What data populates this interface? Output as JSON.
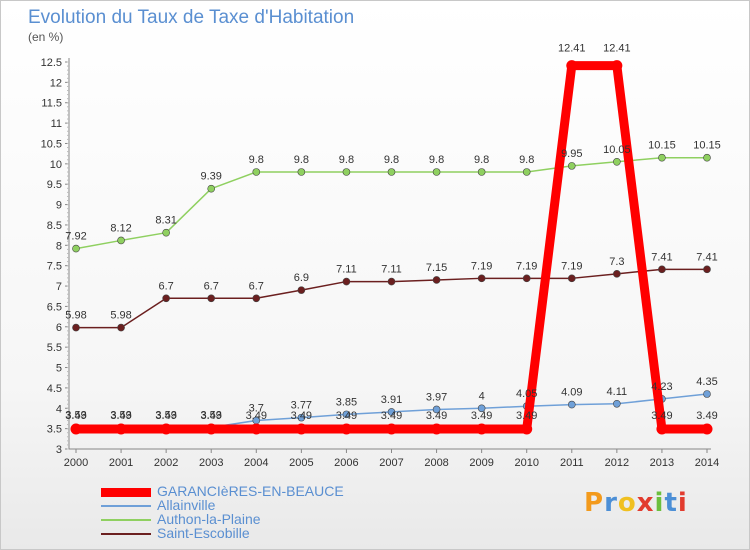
{
  "title": "Evolution du Taux de Taxe d'Habitation",
  "unit": "(en %)",
  "logo": "Proxiti",
  "chart_data": {
    "type": "line",
    "title": "Evolution du Taux de Taxe d'Habitation",
    "ylabel": "(en %)",
    "x": [
      "2000",
      "2001",
      "2002",
      "2003",
      "2004",
      "2005",
      "2006",
      "2007",
      "2008",
      "2009",
      "2010",
      "2011",
      "2012",
      "2013",
      "2014"
    ],
    "ylim": [
      3,
      12.5
    ],
    "yticks": [
      "3",
      "3.5",
      "4",
      "4.5",
      "5",
      "5.5",
      "6",
      "6.5",
      "7",
      "7.5",
      "8",
      "8.5",
      "9",
      "9.5",
      "10",
      "10.5",
      "11",
      "11.5",
      "12",
      "12.5"
    ],
    "grid": false,
    "legend_position": "bottom-left",
    "series": [
      {
        "name": "GARANCIèRES-EN-BEAUCE",
        "color": "#ff0000",
        "width": 9,
        "marker": false,
        "values": [
          3.49,
          3.49,
          3.49,
          3.49,
          3.49,
          3.49,
          3.49,
          3.49,
          3.49,
          3.49,
          3.49,
          12.41,
          12.41,
          3.49,
          3.49
        ],
        "labels": [
          "3.49",
          "3.49",
          "3.49",
          "3.49",
          "3.49",
          "3.49",
          "3.49",
          "3.49",
          "3.49",
          "3.49",
          "3.49",
          "12.41",
          "12.41",
          "3.49",
          "3.49"
        ]
      },
      {
        "name": "Allainville",
        "color": "#6fa0d8",
        "width": 1.5,
        "marker": true,
        "values": [
          3.53,
          3.53,
          3.53,
          3.53,
          3.7,
          3.77,
          3.85,
          3.91,
          3.97,
          4,
          4.05,
          4.09,
          4.11,
          4.23,
          4.35
        ],
        "labels": [
          "3.53",
          "3.53",
          "3.53",
          "3.53",
          "3.7",
          "3.77",
          "3.85",
          "3.91",
          "3.97",
          "4",
          "4.05",
          "4.09",
          "4.11",
          "4.23",
          "4.35"
        ]
      },
      {
        "name": "Authon-la-Plaine",
        "color": "#8fd060",
        "width": 1.5,
        "marker": true,
        "values": [
          7.92,
          8.12,
          8.31,
          9.39,
          9.8,
          9.8,
          9.8,
          9.8,
          9.8,
          9.8,
          9.8,
          9.95,
          10.05,
          10.15,
          10.15
        ],
        "labels": [
          "7.92",
          "8.12",
          "8.31",
          "9.39",
          "9.8",
          "9.8",
          "9.8",
          "9.8",
          "9.8",
          "9.8",
          "9.8",
          "9.95",
          "10.05",
          "10.15",
          "10.15"
        ]
      },
      {
        "name": "Saint-Escobille",
        "color": "#6b1f1f",
        "width": 1.5,
        "marker": true,
        "values": [
          5.98,
          5.98,
          6.7,
          6.7,
          6.7,
          6.9,
          7.11,
          7.11,
          7.15,
          7.19,
          7.19,
          7.19,
          7.3,
          7.41,
          7.41
        ],
        "labels": [
          "5.98",
          "5.98",
          "6.7",
          "6.7",
          "6.7",
          "6.9",
          "7.11",
          "7.11",
          "7.15",
          "7.19",
          "7.19",
          "7.19",
          "7.3",
          "7.41",
          "7.41"
        ]
      }
    ]
  }
}
